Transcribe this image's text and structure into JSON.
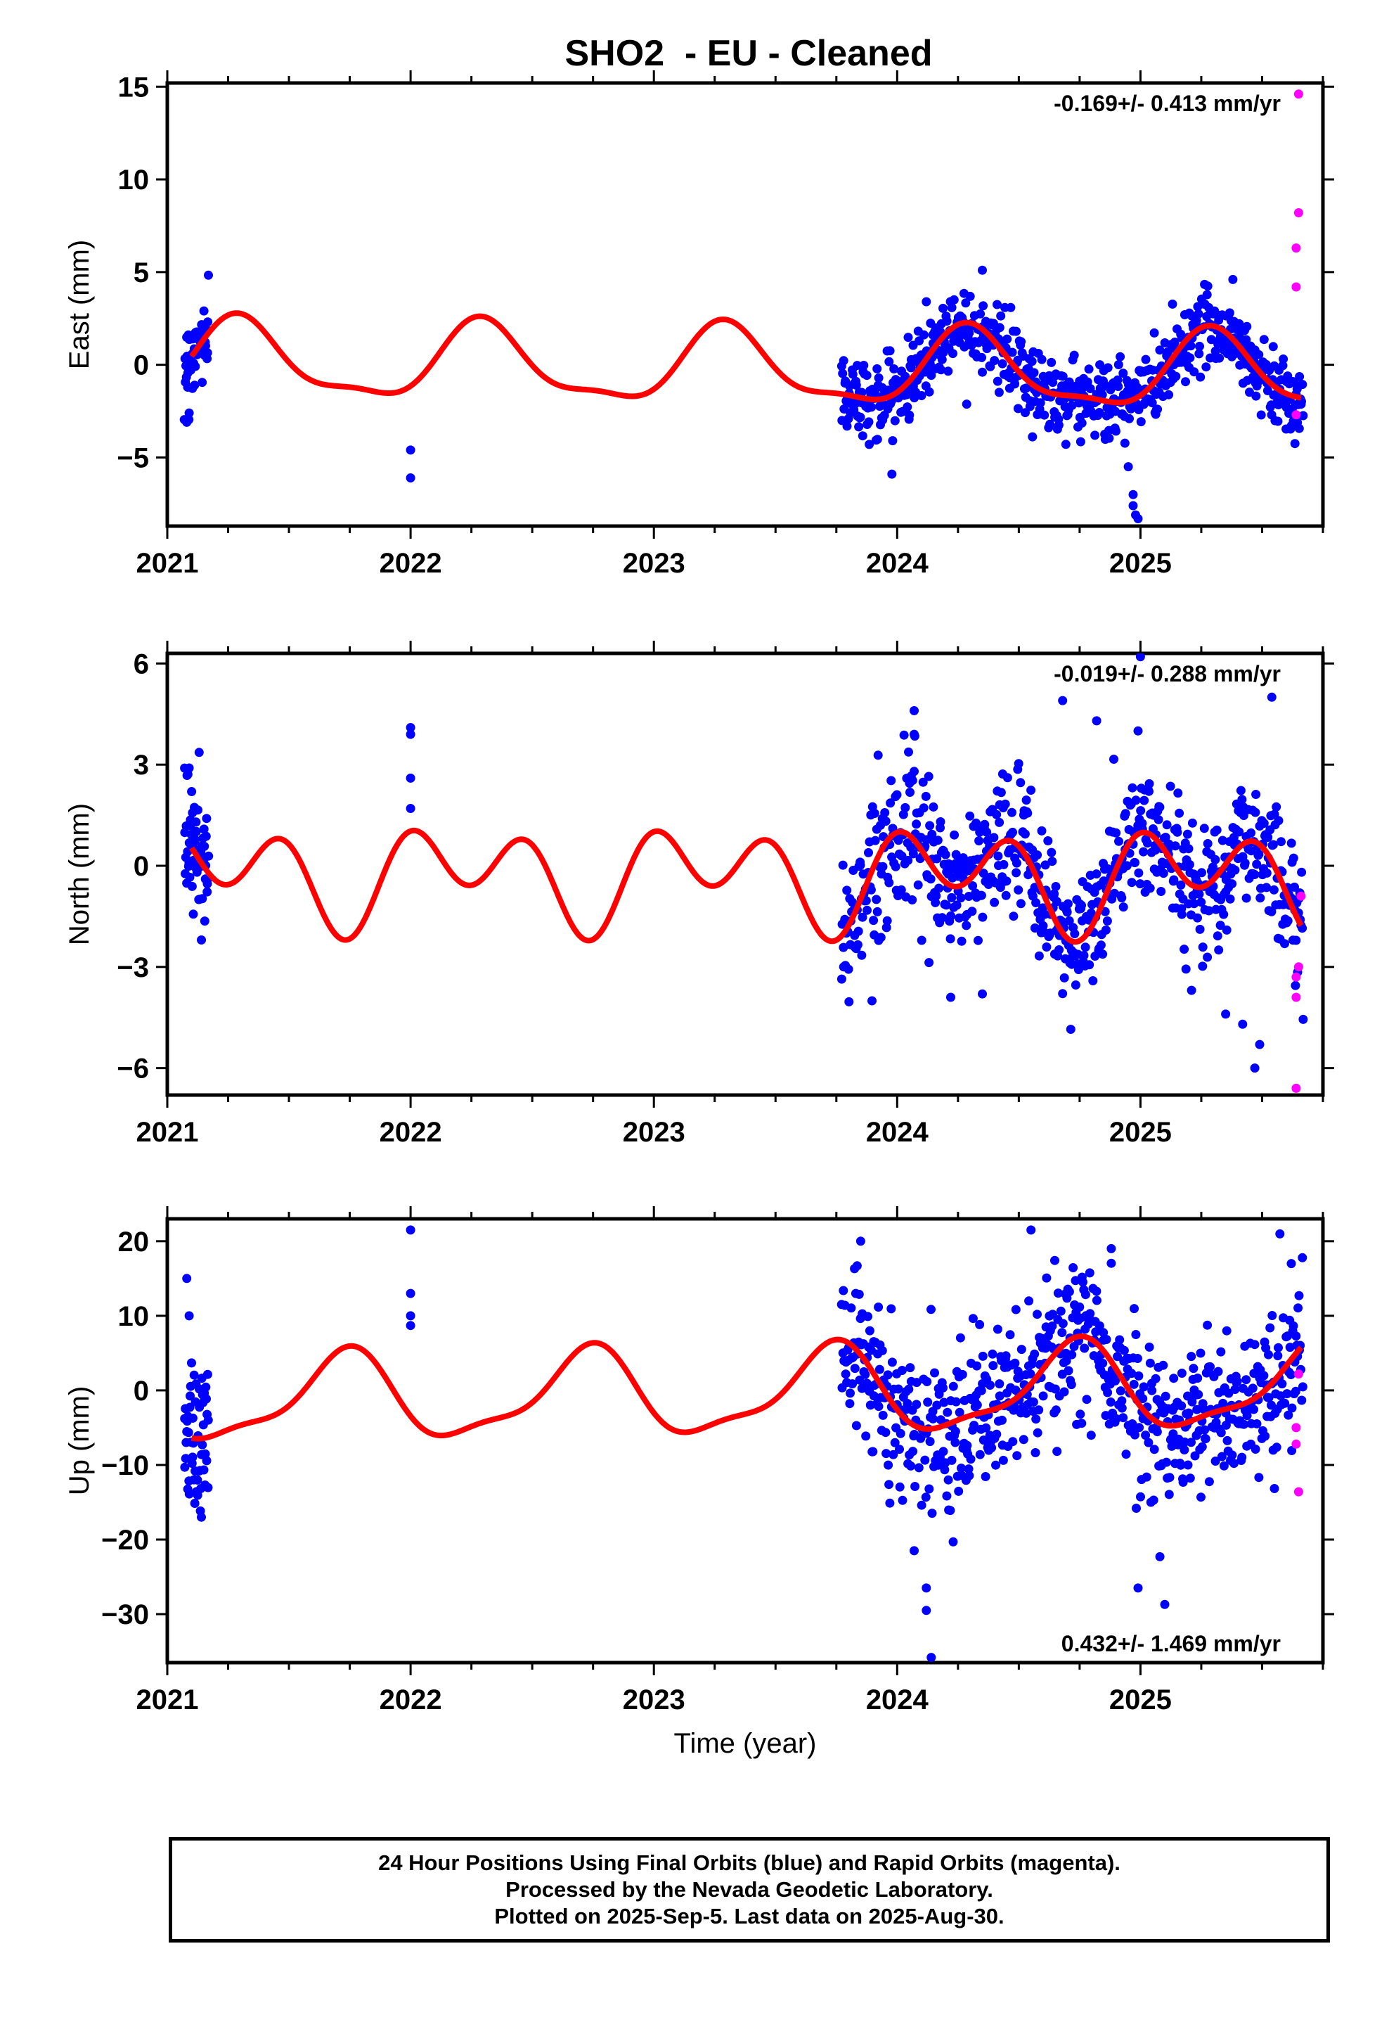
{
  "title": "SHO2  - EU - Cleaned",
  "caption_lines": [
    "24 Hour Positions Using Final Orbits (blue) and Rapid Orbits (magenta).",
    "Processed by the Nevada Geodetic Laboratory.",
    "Plotted on 2025-Sep-5. Last data on 2025-Aug-30."
  ],
  "colors": {
    "final_orbits": "#0000ff",
    "rapid_orbits": "#ff00ff",
    "model": "#ff0000",
    "frame": "#000000"
  },
  "chart_data": [
    {
      "type": "scatter",
      "component": "east",
      "ylabel": "East (mm)",
      "xlabel": "",
      "xlim": [
        2021.0,
        2025.75
      ],
      "ylim": [
        -8.7,
        15.2
      ],
      "yticks": [
        15,
        10,
        5,
        0,
        -5
      ],
      "ytick_labels": [
        "15",
        "10",
        "5",
        "0",
        "−5"
      ],
      "xticks": [
        2021,
        2022,
        2023,
        2024,
        2025
      ],
      "xtick_labels": [
        "2021",
        "2022",
        "2023",
        "2024",
        "2025"
      ],
      "rate_label": "-0.169+/- 0.413 mm/yr",
      "rate_position": "top-right",
      "model": {
        "offset": -0.2,
        "trend": -0.169,
        "annual_cos": -0.6,
        "annual_sin": 1.9,
        "semi_cos": -0.6,
        "semi_sin": -0.2
      },
      "final_orbits": {
        "segments": [
          [
            2021.07,
            2021.17,
            55
          ],
          [
            2023.77,
            2025.67,
            680
          ]
        ],
        "noise": 1.05,
        "points": [
          [
            2021.08,
            -3.1
          ],
          [
            2021.09,
            -2.6
          ],
          [
            2021.1,
            1.4
          ],
          [
            2021.14,
            1.5
          ],
          [
            2022.0,
            -4.6
          ],
          [
            2022.0,
            -6.1
          ],
          [
            2024.12,
            3.4
          ],
          [
            2024.35,
            5.1
          ],
          [
            2024.35,
            -0.4
          ],
          [
            2024.95,
            -5.5
          ],
          [
            2024.97,
            -7.0
          ],
          [
            2024.97,
            -7.6
          ],
          [
            2024.98,
            -8.1
          ],
          [
            2024.99,
            -8.3
          ],
          [
            2025.38,
            4.6
          ],
          [
            2025.6,
            -2.3
          ]
        ]
      },
      "rapid_orbits": {
        "points": [
          [
            2025.65,
            14.6
          ],
          [
            2025.65,
            8.2
          ],
          [
            2025.64,
            6.3
          ],
          [
            2025.64,
            4.2
          ],
          [
            2025.64,
            -2.7
          ]
        ]
      }
    },
    {
      "type": "scatter",
      "component": "north",
      "ylabel": "North (mm)",
      "xlabel": "",
      "xlim": [
        2021.0,
        2025.75
      ],
      "ylim": [
        -6.8,
        6.3
      ],
      "yticks": [
        6,
        3,
        0,
        -3,
        -6
      ],
      "ytick_labels": [
        "6",
        "3",
        "0",
        "−3",
        "−6"
      ],
      "xticks": [
        2021,
        2022,
        2023,
        2024,
        2025
      ],
      "xtick_labels": [
        "2021",
        "2022",
        "2023",
        "2024",
        "2025"
      ],
      "rate_label": "-0.019+/- 0.288 mm/yr",
      "rate_position": "top-right",
      "model": {
        "offset": -0.3,
        "trend": -0.019,
        "annual_cos": 0.2,
        "annual_sin": 0.8,
        "semi_cos": 1.1,
        "semi_sin": -0.2
      },
      "final_orbits": {
        "segments": [
          [
            2021.07,
            2021.17,
            55
          ],
          [
            2023.77,
            2025.67,
            680
          ]
        ],
        "noise": 1.0,
        "points": [
          [
            2021.09,
            2.9
          ],
          [
            2021.1,
            2.2
          ],
          [
            2021.14,
            -2.2
          ],
          [
            2022.0,
            4.1
          ],
          [
            2022.0,
            3.9
          ],
          [
            2022.0,
            2.6
          ],
          [
            2022.0,
            1.7
          ],
          [
            2023.78,
            -3.0
          ],
          [
            2024.07,
            4.6
          ],
          [
            2024.07,
            3.9
          ],
          [
            2024.22,
            -3.9
          ],
          [
            2024.35,
            -3.8
          ],
          [
            2024.68,
            4.9
          ],
          [
            2024.82,
            4.3
          ],
          [
            2024.99,
            4.0
          ],
          [
            2025.0,
            6.2
          ],
          [
            2025.35,
            -4.4
          ],
          [
            2025.42,
            -4.7
          ],
          [
            2025.47,
            -6.0
          ],
          [
            2025.49,
            -5.3
          ],
          [
            2025.54,
            5.0
          ]
        ]
      },
      "rapid_orbits": {
        "points": [
          [
            2025.66,
            -0.9
          ],
          [
            2025.65,
            -3.0
          ],
          [
            2025.64,
            -3.3
          ],
          [
            2025.64,
            -3.9
          ],
          [
            2025.64,
            -6.6
          ]
        ]
      }
    },
    {
      "type": "scatter",
      "component": "up",
      "ylabel": "Up (mm)",
      "xlabel": "Time (year)",
      "xlim": [
        2021.0,
        2025.75
      ],
      "ylim": [
        -36.5,
        23
      ],
      "yticks": [
        20,
        10,
        0,
        -10,
        -20,
        -30
      ],
      "ytick_labels": [
        "20",
        "10",
        "0",
        "−10",
        "−20",
        "−30"
      ],
      "xticks": [
        2021,
        2022,
        2023,
        2024,
        2025
      ],
      "xtick_labels": [
        "2021",
        "2022",
        "2023",
        "2024",
        "2025"
      ],
      "rate_label": "0.432+/- 1.469 mm/yr",
      "rate_position": "bottom-right",
      "model": {
        "offset": -0.4,
        "trend": 0.432,
        "annual_cos": -0.8,
        "annual_sin": -5.5,
        "semi_cos": -1.6,
        "semi_sin": -0.6
      },
      "final_orbits": {
        "segments": [
          [
            2021.07,
            2021.17,
            55
          ],
          [
            2023.77,
            2025.67,
            680
          ]
        ],
        "noise": 5.0,
        "points": [
          [
            2021.08,
            15.0
          ],
          [
            2021.09,
            10.0
          ],
          [
            2021.14,
            -17.0
          ],
          [
            2022.0,
            21.5
          ],
          [
            2022.0,
            13.0
          ],
          [
            2022.0,
            10.0
          ],
          [
            2022.0,
            8.7
          ],
          [
            2023.85,
            20.0
          ],
          [
            2024.07,
            -21.5
          ],
          [
            2024.12,
            -29.5
          ],
          [
            2024.12,
            -26.5
          ],
          [
            2024.14,
            -35.8
          ],
          [
            2024.55,
            21.5
          ],
          [
            2024.88,
            19.0
          ],
          [
            2024.99,
            -26.5
          ],
          [
            2025.1,
            -28.7
          ],
          [
            2025.08,
            -22.3
          ],
          [
            2025.62,
            17.0
          ]
        ]
      },
      "rapid_orbits": {
        "points": [
          [
            2025.65,
            2.2
          ],
          [
            2025.64,
            -5.0
          ],
          [
            2025.64,
            -7.2
          ],
          [
            2025.65,
            -13.6
          ]
        ]
      }
    }
  ]
}
